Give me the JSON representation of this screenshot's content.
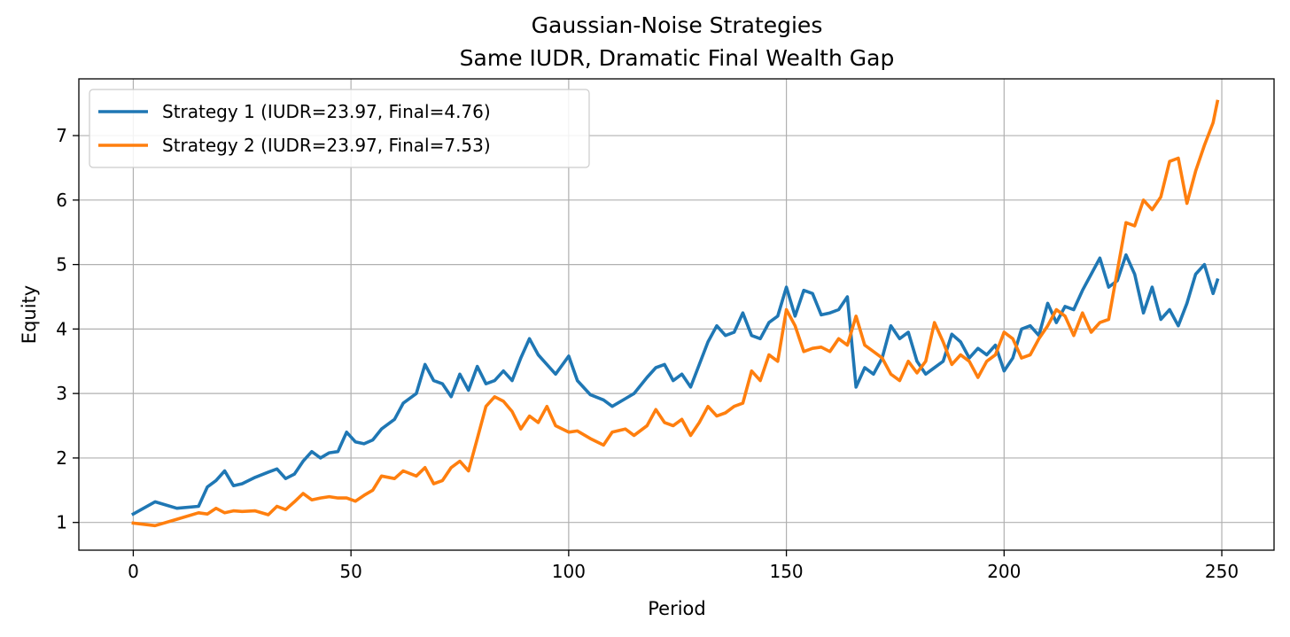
{
  "chart_data": {
    "type": "line",
    "title": "Gaussian-Noise Strategies",
    "subtitle": "Same IUDR, Dramatic Final Wealth Gap",
    "xlabel": "Period",
    "ylabel": "Equity",
    "xlim": [
      -12.5,
      262
    ],
    "ylim": [
      0.57,
      7.88
    ],
    "xticks": [
      0,
      50,
      100,
      150,
      200,
      250
    ],
    "yticks": [
      1,
      2,
      3,
      4,
      5,
      6,
      7
    ],
    "grid": true,
    "legend_position": "top-left",
    "x": [
      0,
      5,
      10,
      15,
      17,
      19,
      21,
      23,
      25,
      28,
      31,
      33,
      35,
      37,
      39,
      41,
      43,
      45,
      47,
      49,
      51,
      53,
      55,
      57,
      60,
      62,
      65,
      67,
      69,
      71,
      73,
      75,
      77,
      79,
      81,
      83,
      85,
      87,
      89,
      91,
      93,
      95,
      97,
      100,
      102,
      105,
      108,
      110,
      113,
      115,
      118,
      120,
      122,
      124,
      126,
      128,
      130,
      132,
      134,
      136,
      138,
      140,
      142,
      144,
      146,
      148,
      150,
      152,
      154,
      156,
      158,
      160,
      162,
      164,
      166,
      168,
      170,
      172,
      174,
      176,
      178,
      180,
      182,
      184,
      186,
      188,
      190,
      192,
      194,
      196,
      198,
      200,
      202,
      204,
      206,
      208,
      210,
      212,
      214,
      216,
      218,
      220,
      222,
      224,
      226,
      228,
      230,
      232,
      234,
      236,
      238,
      240,
      242,
      244,
      246,
      248,
      249
    ],
    "series": [
      {
        "name": "Strategy 1 (IUDR=23.97, Final=4.76)",
        "color": "#1f77b4",
        "values": [
          1.13,
          1.32,
          1.22,
          1.25,
          1.55,
          1.65,
          1.8,
          1.57,
          1.6,
          1.7,
          1.78,
          1.83,
          1.68,
          1.75,
          1.95,
          2.1,
          2.0,
          2.08,
          2.1,
          2.4,
          2.25,
          2.22,
          2.28,
          2.45,
          2.6,
          2.85,
          3.0,
          3.45,
          3.2,
          3.15,
          2.95,
          3.3,
          3.05,
          3.42,
          3.15,
          3.2,
          3.35,
          3.2,
          3.55,
          3.85,
          3.6,
          3.45,
          3.3,
          3.58,
          3.2,
          2.98,
          2.9,
          2.8,
          2.92,
          3.0,
          3.25,
          3.4,
          3.45,
          3.2,
          3.3,
          3.1,
          3.45,
          3.8,
          4.05,
          3.9,
          3.95,
          4.25,
          3.9,
          3.85,
          4.1,
          4.2,
          4.65,
          4.2,
          4.6,
          4.55,
          4.22,
          4.25,
          4.3,
          4.5,
          3.1,
          3.4,
          3.3,
          3.55,
          4.05,
          3.85,
          3.95,
          3.5,
          3.3,
          3.4,
          3.5,
          3.92,
          3.8,
          3.55,
          3.7,
          3.6,
          3.75,
          3.35,
          3.55,
          4.0,
          4.05,
          3.9,
          4.4,
          4.1,
          4.35,
          4.3,
          4.6,
          4.85,
          5.1,
          4.65,
          4.75,
          5.15,
          4.85,
          4.25,
          4.65,
          4.15,
          4.3,
          4.05,
          4.4,
          4.85,
          5.0,
          4.55,
          4.76
        ]
      },
      {
        "name": "Strategy 2 (IUDR=23.97, Final=7.53)",
        "color": "#ff7f0e",
        "values": [
          0.99,
          0.95,
          1.05,
          1.15,
          1.13,
          1.22,
          1.15,
          1.18,
          1.17,
          1.18,
          1.12,
          1.25,
          1.2,
          1.32,
          1.45,
          1.35,
          1.38,
          1.4,
          1.38,
          1.38,
          1.33,
          1.42,
          1.5,
          1.72,
          1.68,
          1.8,
          1.72,
          1.85,
          1.6,
          1.65,
          1.85,
          1.95,
          1.8,
          2.3,
          2.8,
          2.95,
          2.88,
          2.72,
          2.45,
          2.65,
          2.55,
          2.8,
          2.5,
          2.4,
          2.42,
          2.3,
          2.2,
          2.4,
          2.45,
          2.35,
          2.5,
          2.75,
          2.55,
          2.5,
          2.6,
          2.35,
          2.55,
          2.8,
          2.65,
          2.7,
          2.8,
          2.85,
          3.35,
          3.2,
          3.6,
          3.5,
          4.3,
          4.05,
          3.65,
          3.7,
          3.72,
          3.65,
          3.85,
          3.75,
          4.2,
          3.75,
          3.65,
          3.55,
          3.3,
          3.2,
          3.5,
          3.32,
          3.5,
          4.1,
          3.8,
          3.45,
          3.6,
          3.5,
          3.25,
          3.5,
          3.6,
          3.95,
          3.85,
          3.55,
          3.6,
          3.85,
          4.05,
          4.3,
          4.2,
          3.9,
          4.25,
          3.95,
          4.1,
          4.15,
          4.9,
          5.65,
          5.6,
          6.0,
          5.85,
          6.05,
          6.6,
          6.65,
          5.95,
          6.45,
          6.85,
          7.2,
          7.53
        ]
      }
    ]
  }
}
